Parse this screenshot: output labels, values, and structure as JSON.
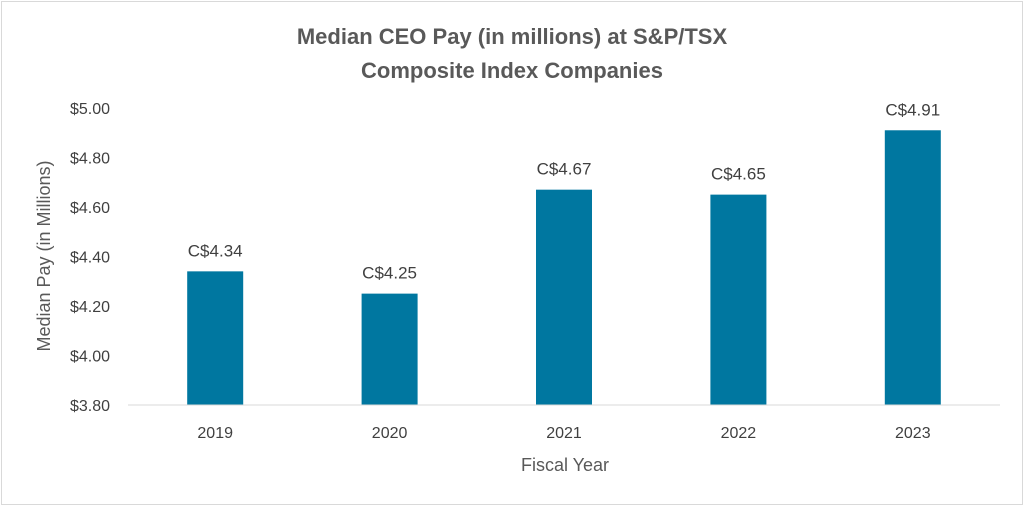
{
  "chart_data": {
    "type": "bar",
    "title_lines": [
      "Median CEO Pay (in millions) at S&P/TSX",
      "Composite Index Companies"
    ],
    "xlabel": "Fiscal Year",
    "ylabel": "Median Pay (in Millions)",
    "categories": [
      "2019",
      "2020",
      "2021",
      "2022",
      "2023"
    ],
    "values": [
      4.34,
      4.25,
      4.67,
      4.65,
      4.91
    ],
    "data_labels": [
      "C$4.34",
      "C$4.25",
      "C$4.67",
      "C$4.65",
      "C$4.91"
    ],
    "ylim": [
      3.8,
      5.0
    ],
    "yticks": [
      3.8,
      4.0,
      4.2,
      4.4,
      4.6,
      4.8,
      5.0
    ],
    "ytick_labels": [
      "$3.80",
      "$4.00",
      "$4.20",
      "$4.40",
      "$4.60",
      "$4.80",
      "$5.00"
    ],
    "bar_color": "#0077a0",
    "grid": false,
    "legend": "none"
  }
}
